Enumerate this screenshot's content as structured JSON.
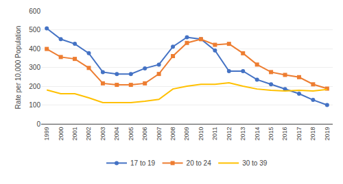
{
  "chart_data": {
    "type": "line",
    "x": [
      1999,
      2000,
      2001,
      2002,
      2003,
      2004,
      2005,
      2006,
      2007,
      2008,
      2009,
      2010,
      2011,
      2012,
      2013,
      2014,
      2015,
      2016,
      2017,
      2018,
      2019
    ],
    "series": [
      {
        "name": "17 to 19",
        "color": "#4472c4",
        "marker": "circle",
        "values": [
          507,
          450,
          425,
          375,
          275,
          265,
          265,
          295,
          315,
          410,
          460,
          450,
          390,
          280,
          280,
          235,
          210,
          185,
          160,
          127,
          100
        ]
      },
      {
        "name": "20 to 24",
        "color": "#ed7d31",
        "marker": "square",
        "values": [
          398,
          355,
          345,
          297,
          215,
          207,
          207,
          215,
          265,
          360,
          430,
          450,
          420,
          425,
          375,
          315,
          275,
          260,
          248,
          210,
          187
        ]
      },
      {
        "name": "30 to 39",
        "color": "#ffc000",
        "marker": "none",
        "values": [
          180,
          160,
          160,
          138,
          113,
          113,
          113,
          120,
          130,
          185,
          200,
          210,
          210,
          218,
          200,
          185,
          178,
          175,
          178,
          175,
          183
        ]
      }
    ],
    "ylabel": "Rate per 10,000 Population",
    "xlim": [
      1998.6,
      2019.4
    ],
    "xticks": [
      1999,
      2000,
      2001,
      2002,
      2003,
      2004,
      2005,
      2006,
      2007,
      2008,
      2009,
      2010,
      2011,
      2012,
      2013,
      2014,
      2015,
      2016,
      2017,
      2018,
      2019
    ],
    "ylim": [
      0,
      600
    ],
    "yticks": [
      0,
      100,
      200,
      300,
      400,
      500,
      600
    ],
    "grid": "y",
    "legend": "bottom"
  }
}
